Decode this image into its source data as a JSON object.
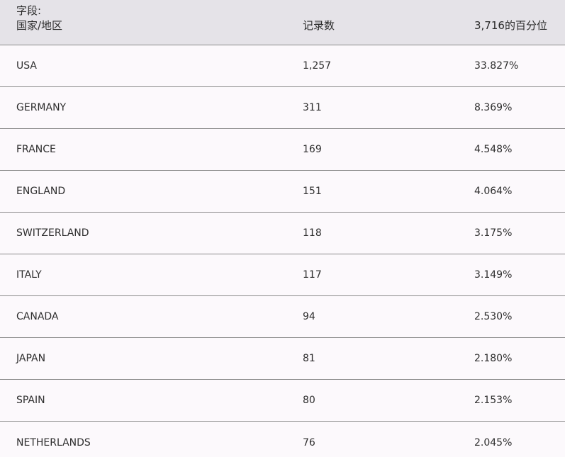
{
  "header": {
    "field_prefix": "字段:",
    "field_name": "国家/地区",
    "count_label": "记录数",
    "percent_label": "3,716的百分位"
  },
  "rows": [
    {
      "country": "USA",
      "count": "1,257",
      "percent": "33.827%"
    },
    {
      "country": "GERMANY",
      "count": "311",
      "percent": "8.369%"
    },
    {
      "country": "FRANCE",
      "count": "169",
      "percent": "4.548%"
    },
    {
      "country": "ENGLAND",
      "count": "151",
      "percent": "4.064%"
    },
    {
      "country": "SWITZERLAND",
      "count": "118",
      "percent": "3.175%"
    },
    {
      "country": "ITALY",
      "count": "117",
      "percent": "3.149%"
    },
    {
      "country": "CANADA",
      "count": "94",
      "percent": "2.530%"
    },
    {
      "country": "JAPAN",
      "count": "81",
      "percent": "2.180%"
    },
    {
      "country": "SPAIN",
      "count": "80",
      "percent": "2.153%"
    },
    {
      "country": "NETHERLANDS",
      "count": "76",
      "percent": "2.045%"
    }
  ]
}
